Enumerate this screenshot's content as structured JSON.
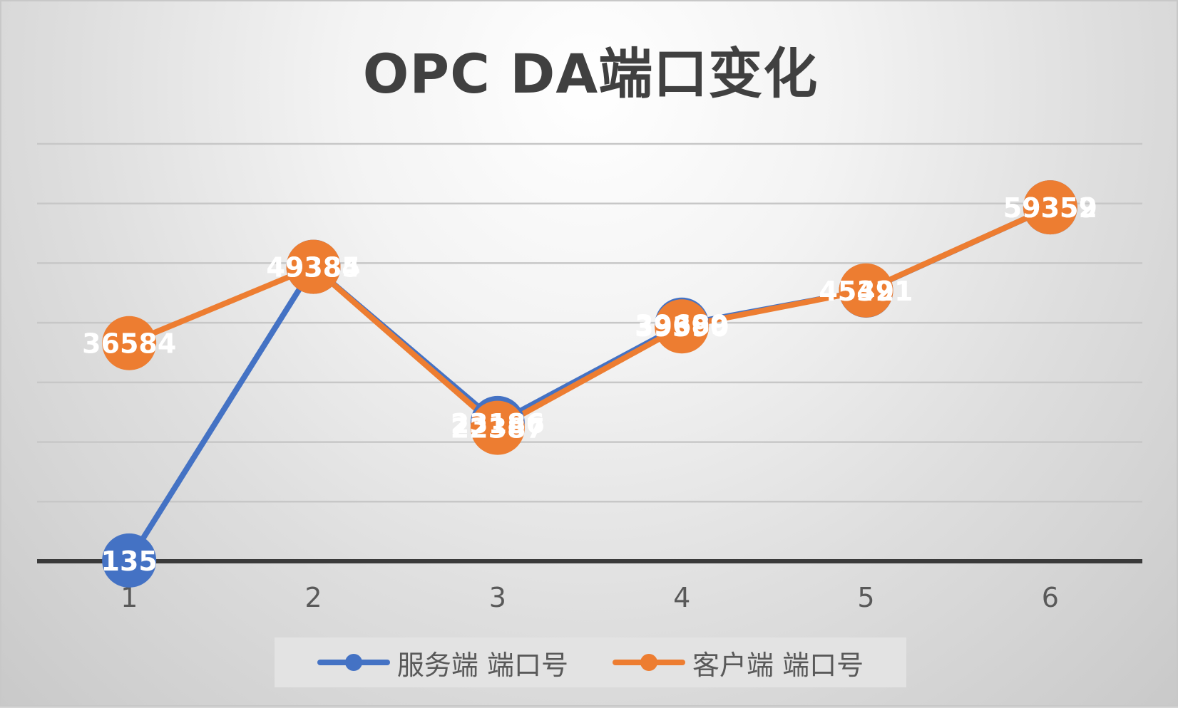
{
  "chart_data": {
    "type": "line",
    "title": "OPC DA端口变化",
    "categories": [
      "1",
      "2",
      "3",
      "4",
      "5",
      "6"
    ],
    "series": [
      {
        "name": "服务端 端口号",
        "color": "#4472C4",
        "values": [
          135,
          49385,
          23186,
          39689,
          45391,
          59352
        ]
      },
      {
        "name": "客户端 端口号",
        "color": "#ED7D31",
        "values": [
          36584,
          49384,
          22387,
          39390,
          45421,
          59359
        ]
      }
    ],
    "ylim": [
      0,
      70000
    ],
    "y_gridline_step": 10000,
    "y_axis_labels_shown": false,
    "grid": true,
    "data_labels": true,
    "legend_position": "bottom"
  }
}
